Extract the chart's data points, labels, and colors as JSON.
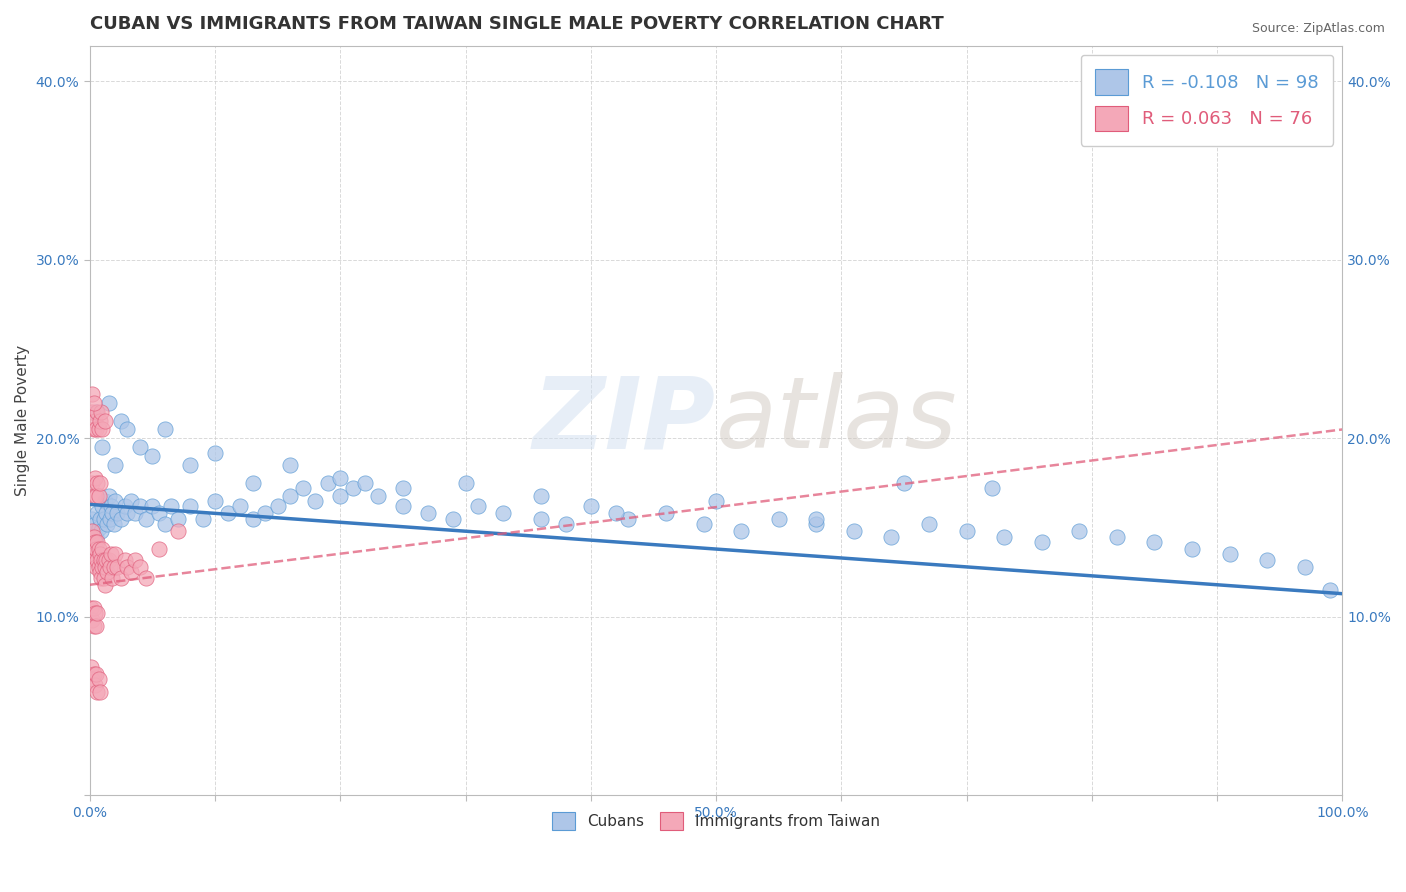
{
  "title": "CUBAN VS IMMIGRANTS FROM TAIWAN SINGLE MALE POVERTY CORRELATION CHART",
  "source": "Source: ZipAtlas.com",
  "ylabel": "Single Male Poverty",
  "xlim": [
    0,
    1
  ],
  "ylim": [
    0,
    0.42
  ],
  "xtick_positions": [
    0.0,
    0.1,
    0.2,
    0.3,
    0.4,
    0.5,
    0.6,
    0.7,
    0.8,
    0.9,
    1.0
  ],
  "xtick_labels": [
    "0.0%",
    "",
    "",
    "",
    "",
    "50.0%",
    "",
    "",
    "",
    "",
    "100.0%"
  ],
  "ytick_positions": [
    0.0,
    0.1,
    0.2,
    0.3,
    0.4
  ],
  "ytick_labels": [
    "",
    "10.0%",
    "20.0%",
    "30.0%",
    "40.0%"
  ],
  "cuban_R": -0.108,
  "cuban_N": 98,
  "taiwan_R": 0.063,
  "taiwan_N": 76,
  "cuban_color": "#aec6e8",
  "taiwan_color": "#f4a8b8",
  "cuban_edge_color": "#5b9bd5",
  "taiwan_edge_color": "#e05c7a",
  "cuban_line_color": "#3a7abf",
  "taiwan_line_color": "#e05c7a",
  "background_color": "#ffffff",
  "grid_color": "#d0d0d0",
  "watermark": "ZIPatlas",
  "title_fontsize": 13,
  "label_fontsize": 11,
  "tick_fontsize": 10,
  "cuban_line_y0": 0.163,
  "cuban_line_y1": 0.113,
  "taiwan_line_y0": 0.118,
  "taiwan_line_y1": 0.205,
  "cuban_x": [
    0.002,
    0.003,
    0.004,
    0.005,
    0.006,
    0.007,
    0.008,
    0.009,
    0.01,
    0.011,
    0.012,
    0.013,
    0.014,
    0.015,
    0.016,
    0.017,
    0.018,
    0.019,
    0.02,
    0.022,
    0.025,
    0.028,
    0.03,
    0.033,
    0.036,
    0.04,
    0.045,
    0.05,
    0.055,
    0.06,
    0.065,
    0.07,
    0.08,
    0.09,
    0.1,
    0.11,
    0.12,
    0.13,
    0.14,
    0.15,
    0.16,
    0.17,
    0.18,
    0.19,
    0.2,
    0.21,
    0.22,
    0.23,
    0.25,
    0.27,
    0.29,
    0.31,
    0.33,
    0.36,
    0.38,
    0.4,
    0.43,
    0.46,
    0.49,
    0.52,
    0.55,
    0.58,
    0.61,
    0.64,
    0.67,
    0.7,
    0.73,
    0.76,
    0.79,
    0.82,
    0.85,
    0.88,
    0.91,
    0.94,
    0.97,
    0.99,
    0.005,
    0.01,
    0.015,
    0.02,
    0.025,
    0.03,
    0.04,
    0.05,
    0.06,
    0.08,
    0.1,
    0.13,
    0.16,
    0.2,
    0.25,
    0.3,
    0.36,
    0.42,
    0.5,
    0.58,
    0.65,
    0.72
  ],
  "cuban_y": [
    0.155,
    0.148,
    0.152,
    0.145,
    0.158,
    0.15,
    0.155,
    0.148,
    0.162,
    0.155,
    0.165,
    0.158,
    0.152,
    0.168,
    0.155,
    0.162,
    0.158,
    0.152,
    0.165,
    0.158,
    0.155,
    0.162,
    0.158,
    0.165,
    0.158,
    0.162,
    0.155,
    0.162,
    0.158,
    0.152,
    0.162,
    0.155,
    0.162,
    0.155,
    0.165,
    0.158,
    0.162,
    0.155,
    0.158,
    0.162,
    0.168,
    0.172,
    0.165,
    0.175,
    0.168,
    0.172,
    0.175,
    0.168,
    0.162,
    0.158,
    0.155,
    0.162,
    0.158,
    0.155,
    0.152,
    0.162,
    0.155,
    0.158,
    0.152,
    0.148,
    0.155,
    0.152,
    0.148,
    0.145,
    0.152,
    0.148,
    0.145,
    0.142,
    0.148,
    0.145,
    0.142,
    0.138,
    0.135,
    0.132,
    0.128,
    0.115,
    0.215,
    0.195,
    0.22,
    0.185,
    0.21,
    0.205,
    0.195,
    0.19,
    0.205,
    0.185,
    0.192,
    0.175,
    0.185,
    0.178,
    0.172,
    0.175,
    0.168,
    0.158,
    0.165,
    0.155,
    0.175,
    0.172
  ],
  "taiwan_x": [
    0.001,
    0.001,
    0.002,
    0.002,
    0.003,
    0.003,
    0.004,
    0.004,
    0.005,
    0.005,
    0.006,
    0.006,
    0.007,
    0.007,
    0.008,
    0.008,
    0.009,
    0.009,
    0.01,
    0.01,
    0.011,
    0.011,
    0.012,
    0.012,
    0.013,
    0.014,
    0.015,
    0.016,
    0.017,
    0.018,
    0.019,
    0.02,
    0.022,
    0.025,
    0.028,
    0.03,
    0.033,
    0.036,
    0.04,
    0.045,
    0.002,
    0.003,
    0.004,
    0.005,
    0.006,
    0.007,
    0.008,
    0.009,
    0.01,
    0.012,
    0.002,
    0.003,
    0.004,
    0.005,
    0.006,
    0.007,
    0.008,
    0.001,
    0.002,
    0.003,
    0.003,
    0.004,
    0.005,
    0.006,
    0.001,
    0.002,
    0.003,
    0.004,
    0.005,
    0.006,
    0.007,
    0.008,
    0.002,
    0.003,
    0.055,
    0.07
  ],
  "taiwan_y": [
    0.145,
    0.135,
    0.148,
    0.138,
    0.145,
    0.135,
    0.142,
    0.132,
    0.138,
    0.128,
    0.142,
    0.132,
    0.138,
    0.128,
    0.135,
    0.125,
    0.132,
    0.122,
    0.138,
    0.128,
    0.132,
    0.122,
    0.128,
    0.118,
    0.132,
    0.125,
    0.132,
    0.128,
    0.135,
    0.122,
    0.128,
    0.135,
    0.128,
    0.122,
    0.132,
    0.128,
    0.125,
    0.132,
    0.128,
    0.122,
    0.215,
    0.205,
    0.21,
    0.205,
    0.215,
    0.205,
    0.21,
    0.215,
    0.205,
    0.21,
    0.175,
    0.168,
    0.178,
    0.168,
    0.175,
    0.168,
    0.175,
    0.105,
    0.098,
    0.105,
    0.095,
    0.102,
    0.095,
    0.102,
    0.072,
    0.065,
    0.068,
    0.062,
    0.068,
    0.058,
    0.065,
    0.058,
    0.225,
    0.22,
    0.138,
    0.148
  ]
}
